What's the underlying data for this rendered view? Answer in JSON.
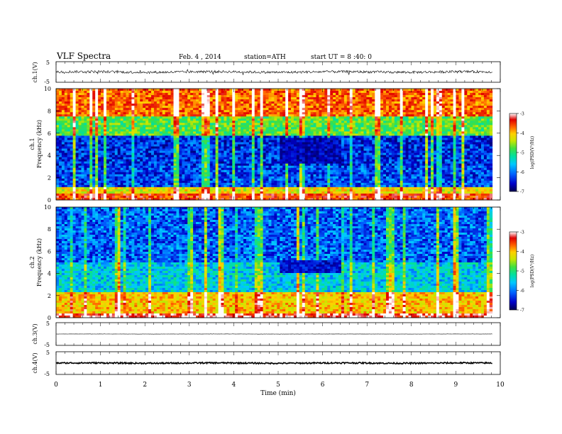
{
  "header": {
    "title": "VLF  Spectra",
    "date": "Feb. 4  , 2014",
    "station": "station=ATH",
    "start": "start  UT  =   8  :40: 0"
  },
  "chart_data": [
    {
      "type": "line",
      "name": "ch1-waveform",
      "ylabel": "ch.1(V)",
      "xlim": [
        0,
        10
      ],
      "ylim": [
        -5,
        5
      ],
      "yticks": [
        "5",
        "-5"
      ],
      "baseline": 0,
      "amplitude": 0.6,
      "x_data_end": 9.82
    },
    {
      "type": "heatmap",
      "name": "ch1-spectrogram",
      "ylabel": "ch.1\nFrequency  (kHz)",
      "xlim": [
        0,
        10
      ],
      "ylim": [
        0,
        10
      ],
      "yticks": [
        "0",
        "2",
        "4",
        "6",
        "8",
        "10"
      ],
      "x_data_end": 9.82,
      "colorbar": {
        "label": "log(PSD(V²/Hz)",
        "range": [
          -7,
          -3
        ],
        "ticks": [
          "-3",
          "-4",
          "-5",
          "-6",
          "-7"
        ]
      },
      "regions": [
        {
          "f": [
            0,
            0.6
          ],
          "level": -3.6
        },
        {
          "f": [
            0.6,
            1.2
          ],
          "level": -4.4
        },
        {
          "f": [
            1.2,
            3.0
          ],
          "level": -6.3
        },
        {
          "f": [
            3.0,
            5.7
          ],
          "level": -6.4
        },
        {
          "f": [
            5.7,
            7.5
          ],
          "level": -5.0
        },
        {
          "f": [
            7.5,
            10
          ],
          "level": -3.8
        }
      ],
      "quiet_patch": {
        "t": [
          5.05,
          6.45
        ],
        "f": [
          3.2,
          5.5
        ],
        "level": -6.9
      }
    },
    {
      "type": "heatmap",
      "name": "ch2-spectrogram",
      "ylabel": "ch.2\nFrequency  (kHz)",
      "xlim": [
        0,
        10
      ],
      "ylim": [
        0,
        10
      ],
      "yticks": [
        "0",
        "2",
        "4",
        "6",
        "8",
        "10"
      ],
      "x_data_end": 9.82,
      "colorbar": {
        "label": "log(PSD(V²/Hz)",
        "range": [
          -7,
          -3
        ],
        "ticks": [
          "-3",
          "-4",
          "-5",
          "-6",
          "-7"
        ]
      },
      "regions": [
        {
          "f": [
            0,
            0.4
          ],
          "level": -3.3
        },
        {
          "f": [
            0.4,
            2.4
          ],
          "level": -4.2
        },
        {
          "f": [
            2.4,
            5.0
          ],
          "level": -5.7
        },
        {
          "f": [
            5.0,
            10
          ],
          "level": -6.2
        }
      ],
      "quiet_patch": {
        "t": [
          5.05,
          6.4
        ],
        "f": [
          4.0,
          5.2
        ],
        "level": -6.8
      }
    },
    {
      "type": "line",
      "name": "ch3-waveform",
      "ylabel": "ch.3(V)",
      "xlim": [
        0,
        10
      ],
      "ylim": [
        -5,
        5
      ],
      "yticks": [
        "5",
        "-5"
      ],
      "baseline": 0,
      "amplitude": 0.05,
      "x_data_end": 9.82
    },
    {
      "type": "line",
      "name": "ch4-waveform",
      "ylabel": "ch.4(V)",
      "xlim": [
        0,
        10
      ],
      "ylim": [
        -5,
        5
      ],
      "yticks": [
        "5",
        "-5"
      ],
      "baseline": 0,
      "amplitude": 0.3,
      "x_data_end": 9.82
    }
  ],
  "xaxis": {
    "label": "Time  (min)",
    "ticks": [
      "0",
      "1",
      "2",
      "3",
      "4",
      "5",
      "6",
      "7",
      "8",
      "9",
      "10"
    ]
  },
  "colors": {
    "colormap": [
      "#000050",
      "#0000c8",
      "#0060ff",
      "#00c8ff",
      "#00e0a0",
      "#40e040",
      "#c8e600",
      "#ffd000",
      "#ff6000",
      "#e00000",
      "#ffffff"
    ]
  }
}
